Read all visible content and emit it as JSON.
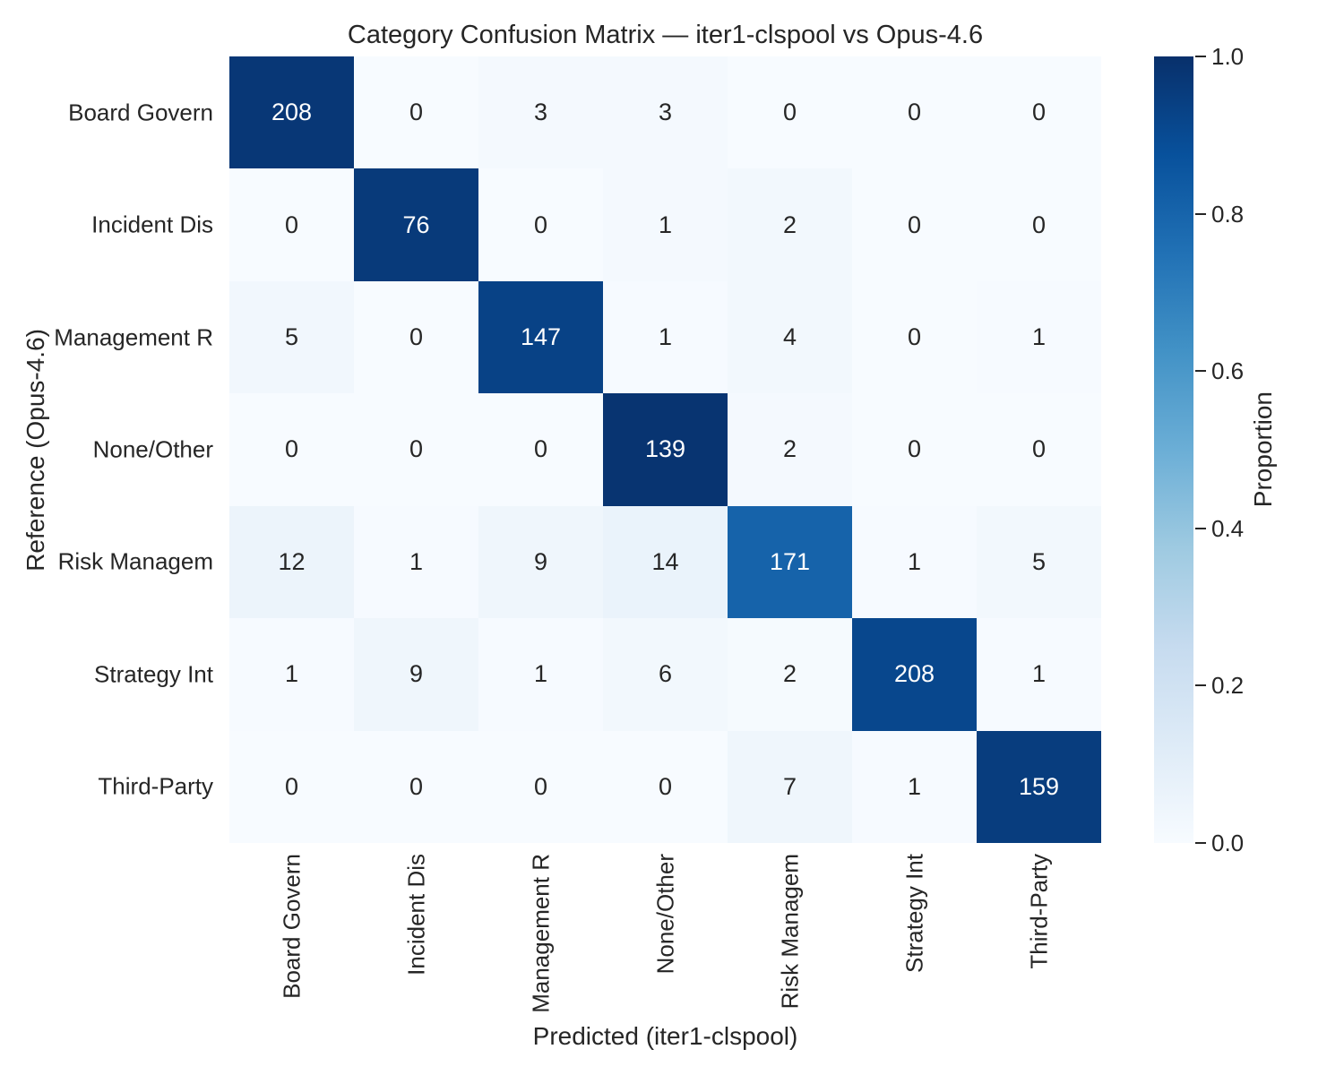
{
  "chart_data": {
    "type": "heatmap",
    "title": "Category Confusion Matrix — iter1-clspool vs Opus-4.6",
    "xlabel": "Predicted (iter1-clspool)",
    "ylabel": "Reference (Opus-4.6)",
    "x_categories": [
      "Board Govern",
      "Incident Dis",
      "Management R",
      "None/Other",
      "Risk Managem",
      "Strategy Int",
      "Third-Party"
    ],
    "y_categories": [
      "Board Govern",
      "Incident Dis",
      "Management R",
      "None/Other",
      "Risk Managem",
      "Strategy Int",
      "Third-Party"
    ],
    "matrix": [
      [
        208,
        0,
        3,
        3,
        0,
        0,
        0
      ],
      [
        0,
        76,
        0,
        1,
        2,
        0,
        0
      ],
      [
        5,
        0,
        147,
        1,
        4,
        0,
        1
      ],
      [
        0,
        0,
        0,
        139,
        2,
        0,
        0
      ],
      [
        12,
        1,
        9,
        14,
        171,
        1,
        5
      ],
      [
        1,
        9,
        1,
        6,
        2,
        208,
        1
      ],
      [
        0,
        0,
        0,
        0,
        7,
        1,
        159
      ]
    ],
    "normalization": "row",
    "grid": false,
    "colormap": {
      "name": "Blues",
      "stops": [
        "#f7fbff",
        "#deebf7",
        "#c6dbef",
        "#9ecae1",
        "#6baed6",
        "#4292c6",
        "#2171b5",
        "#08519c",
        "#08306b"
      ]
    },
    "colorbar": {
      "label": "Proportion",
      "ticks": [
        "1.0",
        "0.8",
        "0.6",
        "0.4",
        "0.2",
        "0.0"
      ],
      "range": [
        0.0,
        1.0
      ],
      "position": "right"
    },
    "colors": {
      "text": "#262626",
      "annotation_on_dark": "#ffffff",
      "background": "#ffffff"
    }
  }
}
